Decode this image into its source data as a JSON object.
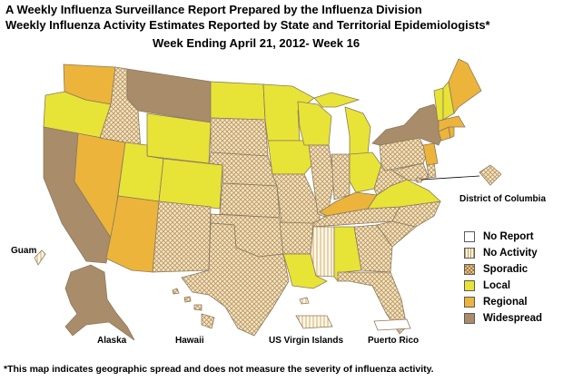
{
  "header": {
    "title_line1": "A Weekly Influenza Surveillance Report Prepared by the Influenza Division",
    "title_line2": "Weekly Influenza Activity Estimates Reported by State and Territorial Epidemiologists*",
    "week_label": "Week Ending April 21, 2012- Week 16"
  },
  "colors": {
    "no_report": "#ffffff",
    "no_activity_bg": "#fff8e6",
    "no_activity_line": "#c39a55",
    "sporadic_bg": "#f5e6c4",
    "sporadic_line": "#b89460",
    "local": "#e8e337",
    "regional": "#ecb43a",
    "widespread": "#a98c6a",
    "border": "#8a7a60"
  },
  "legend": {
    "items": [
      {
        "label": "No Report",
        "level": "no_report"
      },
      {
        "label": "No Activity",
        "level": "no_activity"
      },
      {
        "label": "Sporadic",
        "level": "sporadic"
      },
      {
        "label": "Local",
        "level": "local"
      },
      {
        "label": "Regional",
        "level": "regional"
      },
      {
        "label": "Widespread",
        "level": "widespread"
      }
    ]
  },
  "territory_labels": {
    "district_of_columbia": "District of Columbia",
    "guam": "Guam",
    "alaska": "Alaska",
    "hawaii": "Hawaii",
    "us_virgin_islands": "US Virgin Islands",
    "puerto_rico": "Puerto Rico"
  },
  "footnote": "*This map indicates geographic spread and does not measure the severity of influenza activity.",
  "states": {
    "WA": "regional",
    "OR": "local",
    "CA": "widespread",
    "NV": "regional",
    "ID": "sporadic",
    "MT": "widespread",
    "WY": "local",
    "UT": "local",
    "AZ": "regional",
    "CO": "local",
    "NM": "sporadic",
    "ND": "local",
    "SD": "sporadic",
    "NE": "sporadic",
    "KS": "sporadic",
    "OK": "sporadic",
    "TX": "sporadic",
    "MN": "local",
    "IA": "local",
    "MO": "sporadic",
    "AR": "sporadic",
    "LA": "local",
    "WI": "local",
    "IL": "sporadic",
    "MI": "local",
    "IN": "sporadic",
    "OH": "local",
    "KY": "regional",
    "TN": "sporadic",
    "MS": "no_activity",
    "AL": "local",
    "GA": "sporadic",
    "FL": "sporadic",
    "SC": "sporadic",
    "NC": "sporadic",
    "VA": "local",
    "WV": "sporadic",
    "PA": "sporadic",
    "NY": "widespread",
    "NJ": "regional",
    "DE": "sporadic",
    "MD": "sporadic",
    "DC": "sporadic",
    "CT": "regional",
    "RI": "regional",
    "MA": "regional",
    "VT": "local",
    "NH": "local",
    "ME": "regional",
    "AK": "widespread",
    "HI": "sporadic",
    "PR": "no_report",
    "VI": "no_activity",
    "GU": "no_activity"
  }
}
